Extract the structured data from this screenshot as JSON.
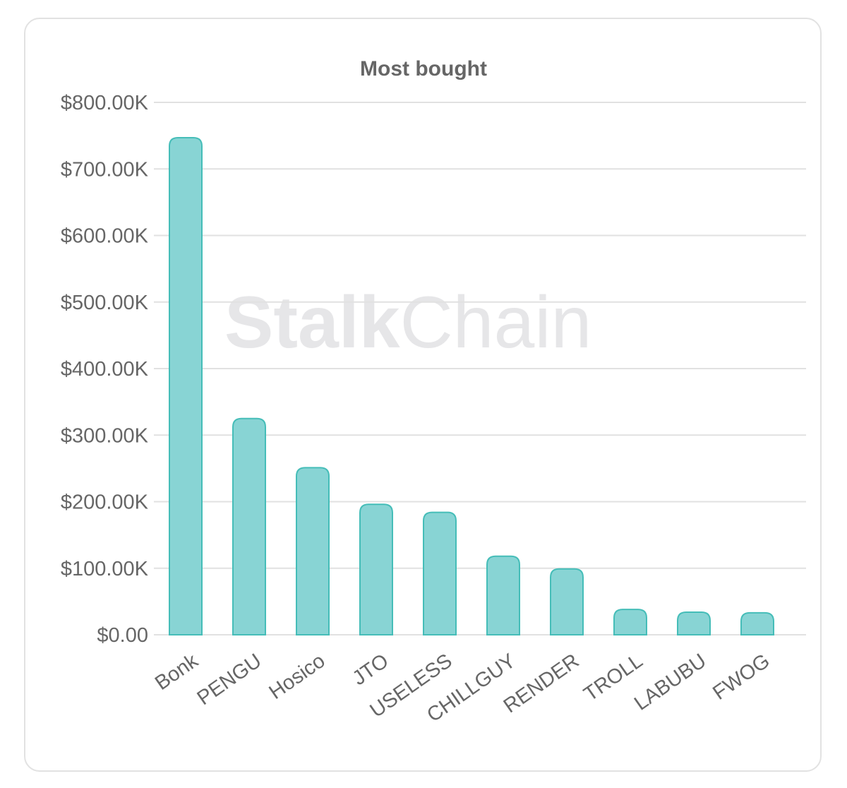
{
  "colors": {
    "bar_fill": "#88d4d4",
    "bar_stroke": "#45bdb8",
    "grid": "#e1e1e1",
    "text": "#666666",
    "watermark": "#e6e6e8",
    "card_border": "#e2e2e2"
  },
  "watermark": {
    "bold": "Stalk",
    "light": "Chain"
  },
  "chart_data": {
    "type": "bar",
    "title": "Most bought",
    "xlabel": "",
    "ylabel": "",
    "ylim": [
      0,
      800000
    ],
    "grid": true,
    "legend": "none",
    "y_ticks": [
      {
        "value": 0,
        "label": "$0.00"
      },
      {
        "value": 100000,
        "label": "$100.00K"
      },
      {
        "value": 200000,
        "label": "$200.00K"
      },
      {
        "value": 300000,
        "label": "$300.00K"
      },
      {
        "value": 400000,
        "label": "$400.00K"
      },
      {
        "value": 500000,
        "label": "$500.00K"
      },
      {
        "value": 600000,
        "label": "$600.00K"
      },
      {
        "value": 700000,
        "label": "$700.00K"
      },
      {
        "value": 800000,
        "label": "$800.00K"
      }
    ],
    "categories": [
      "Bonk",
      "PENGU",
      "Hosico",
      "JTO",
      "USELESS",
      "CHILLGUY",
      "RENDER",
      "TROLL",
      "LABUBU",
      "FWOG"
    ],
    "values": [
      747000,
      325000,
      251000,
      196000,
      184000,
      118000,
      99000,
      38000,
      34000,
      33000
    ]
  }
}
